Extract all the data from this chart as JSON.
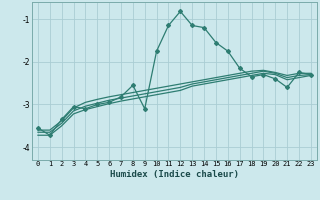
{
  "xlabel": "Humidex (Indice chaleur)",
  "bg_color": "#cce8ec",
  "grid_color": "#aacdd4",
  "line_color": "#2e7d72",
  "xlim": [
    -0.5,
    23.5
  ],
  "ylim": [
    -4.3,
    -0.6
  ],
  "x": [
    0,
    1,
    2,
    3,
    4,
    5,
    6,
    7,
    8,
    9,
    10,
    11,
    12,
    13,
    14,
    15,
    16,
    17,
    18,
    19,
    20,
    21,
    22,
    23
  ],
  "y_main": [
    -3.55,
    -3.72,
    -3.35,
    -3.05,
    -3.1,
    -3.0,
    -2.95,
    -2.82,
    -2.55,
    -3.1,
    -1.75,
    -1.15,
    -0.82,
    -1.15,
    -1.2,
    -1.55,
    -1.75,
    -2.15,
    -2.35,
    -2.3,
    -2.4,
    -2.6,
    -2.25,
    -2.3
  ],
  "y_line2": [
    -3.6,
    -3.6,
    -3.38,
    -3.08,
    -2.95,
    -2.88,
    -2.82,
    -2.77,
    -2.72,
    -2.67,
    -2.62,
    -2.57,
    -2.52,
    -2.47,
    -2.42,
    -2.37,
    -2.32,
    -2.27,
    -2.22,
    -2.2,
    -2.25,
    -2.32,
    -2.27,
    -2.27
  ],
  "y_line3": [
    -3.72,
    -3.72,
    -3.5,
    -3.22,
    -3.12,
    -3.05,
    -2.98,
    -2.92,
    -2.87,
    -2.82,
    -2.77,
    -2.72,
    -2.67,
    -2.57,
    -2.52,
    -2.47,
    -2.42,
    -2.37,
    -2.32,
    -2.27,
    -2.3,
    -2.42,
    -2.37,
    -2.32
  ],
  "y_line4": [
    -3.65,
    -3.65,
    -3.44,
    -3.15,
    -3.04,
    -2.97,
    -2.9,
    -2.85,
    -2.8,
    -2.75,
    -2.7,
    -2.65,
    -2.6,
    -2.52,
    -2.47,
    -2.42,
    -2.37,
    -2.32,
    -2.27,
    -2.22,
    -2.27,
    -2.37,
    -2.32,
    -2.3
  ],
  "yticks": [
    -4,
    -3,
    -2,
    -1
  ],
  "xticks": [
    0,
    1,
    2,
    3,
    4,
    5,
    6,
    7,
    8,
    9,
    10,
    11,
    12,
    13,
    14,
    15,
    16,
    17,
    18,
    19,
    20,
    21,
    22,
    23
  ]
}
